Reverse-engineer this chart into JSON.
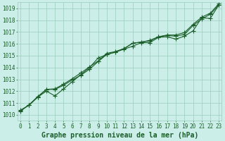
{
  "title": "Graphe pression niveau de la mer (hPa)",
  "bg_color": "#cceee8",
  "grid_color": "#99ccbb",
  "line_color": "#1a5e2a",
  "x_min": 0,
  "x_max": 23,
  "y_min": 1009.5,
  "y_max": 1019.5,
  "series": [
    [
      1010.4,
      1010.8,
      1011.5,
      1012.0,
      1011.6,
      1012.2,
      1012.8,
      1013.4,
      1014.0,
      1014.8,
      1015.1,
      1015.3,
      1015.55,
      1015.8,
      1016.1,
      1016.1,
      1016.55,
      1016.6,
      1016.4,
      1016.65,
      1017.1,
      1018.2,
      1018.15,
      1019.3
    ],
    [
      1010.35,
      1010.85,
      1011.5,
      1012.15,
      1012.2,
      1012.6,
      1013.05,
      1013.55,
      1014.05,
      1014.55,
      1015.2,
      1015.35,
      1015.6,
      1016.05,
      1016.15,
      1016.25,
      1016.6,
      1016.7,
      1016.65,
      1016.8,
      1017.55,
      1018.1,
      1018.5,
      1019.3
    ],
    [
      1010.3,
      1010.85,
      1011.55,
      1012.15,
      1012.15,
      1012.5,
      1012.95,
      1013.35,
      1013.85,
      1014.5,
      1015.1,
      1015.3,
      1015.6,
      1016.05,
      1016.15,
      1016.3,
      1016.6,
      1016.75,
      1016.75,
      1016.95,
      1017.65,
      1018.25,
      1018.6,
      1019.4
    ]
  ],
  "yticks": [
    1010,
    1011,
    1012,
    1013,
    1014,
    1015,
    1016,
    1017,
    1018,
    1019
  ],
  "xticks": [
    0,
    1,
    2,
    3,
    4,
    5,
    6,
    7,
    8,
    9,
    10,
    11,
    12,
    13,
    14,
    15,
    16,
    17,
    18,
    19,
    20,
    21,
    22,
    23
  ],
  "tick_fontsize": 5.5,
  "title_fontsize": 7,
  "marker": "+",
  "marker_size": 4,
  "linewidth": 0.8
}
